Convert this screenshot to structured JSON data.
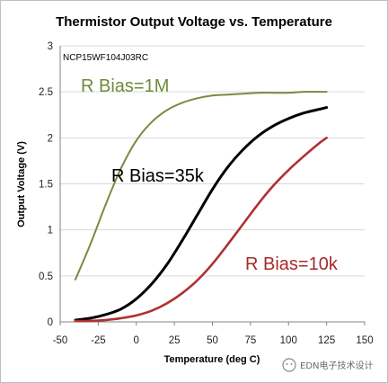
{
  "chart_data": {
    "type": "line",
    "title": "Thermistor Output Voltage vs. Temperature",
    "subtitle": "NCP15WF104J03RC",
    "xlabel": "Temperature (deg C)",
    "ylabel": "Output Voltage (V)",
    "xlim": [
      -50,
      150
    ],
    "ylim": [
      0,
      3
    ],
    "xticks": [
      "-50",
      "-25",
      "0",
      "25",
      "50",
      "75",
      "100",
      "125",
      "150"
    ],
    "yticks": [
      "0",
      "0.5",
      "1",
      "1.5",
      "2",
      "2.5",
      "3"
    ],
    "grid": "horizontal",
    "x": [
      -40,
      -30,
      -20,
      -10,
      0,
      10,
      20,
      30,
      40,
      50,
      60,
      70,
      80,
      90,
      100,
      110,
      120,
      125
    ],
    "series": [
      {
        "name": "R Bias=1M",
        "color": "#7a8a42",
        "values": [
          0.46,
          0.85,
          1.28,
          1.67,
          1.97,
          2.17,
          2.3,
          2.38,
          2.43,
          2.46,
          2.47,
          2.48,
          2.49,
          2.49,
          2.49,
          2.5,
          2.5,
          2.5
        ]
      },
      {
        "name": "R Bias=35k",
        "color": "#000000",
        "values": [
          0.02,
          0.04,
          0.08,
          0.14,
          0.25,
          0.41,
          0.62,
          0.88,
          1.16,
          1.44,
          1.68,
          1.87,
          2.02,
          2.13,
          2.21,
          2.27,
          2.31,
          2.33
        ]
      },
      {
        "name": "R Bias=10k",
        "color": "#b03030",
        "values": [
          0.01,
          0.01,
          0.02,
          0.04,
          0.07,
          0.12,
          0.2,
          0.31,
          0.45,
          0.63,
          0.84,
          1.06,
          1.28,
          1.48,
          1.65,
          1.8,
          1.94,
          2.0
        ]
      }
    ]
  },
  "watermark": "EDN电子技术设计"
}
